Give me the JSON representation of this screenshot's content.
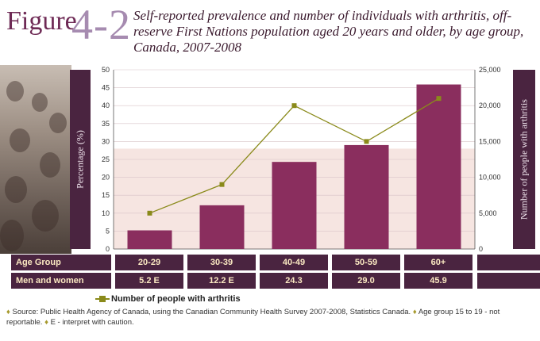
{
  "figure": {
    "word": "Figure",
    "number": "4-2"
  },
  "title": "Self-reported prevalence and number of individuals with arthritis, off-reserve First Nations population aged 20 years and older, by age group, Canada, 2007-2008",
  "colors": {
    "bar": "#8a2e5e",
    "line": "#8a8a1a",
    "dark": "#4a2440",
    "accent": "#fbe9c2"
  },
  "chart_data": {
    "type": "bar",
    "categories": [
      "20-29",
      "30-39",
      "40-49",
      "50-59",
      "60+"
    ],
    "series": [
      {
        "values": [
          5.2,
          12.2,
          24.3,
          29.0,
          45.9
        ],
        "axis": "left"
      },
      {
        "name": "Number of people with arthritis",
        "type": "line",
        "values": [
          5000,
          9000,
          20000,
          15000,
          21000
        ],
        "axis": "right"
      }
    ],
    "ylabel": "Percentage (%)",
    "y2label": "Number of people with arthritis",
    "ylim": [
      0,
      50
    ],
    "y2lim": [
      0,
      25000
    ],
    "yticks": [
      "0",
      "5",
      "10",
      "15",
      "20",
      "25",
      "30",
      "35",
      "40",
      "45",
      "50"
    ],
    "y2ticks": [
      "0",
      "5,000",
      "10,000",
      "15,000",
      "20,000",
      "25,000"
    ]
  },
  "table": {
    "header_label": "Age Group",
    "row_label": "Men and women",
    "values": [
      "5.2 E",
      "12.2 E",
      "24.3",
      "29.0",
      "45.9"
    ]
  },
  "legend": {
    "label": "Number of people with arthritis"
  },
  "notes": {
    "source": "Source: Public Health Agency of Canada, using the Canadian Community Health Survey 2007-2008, Statistics Canada.",
    "note1": "Age group 15 to 19 - not reportable.",
    "note2": "E - interpret with caution."
  }
}
